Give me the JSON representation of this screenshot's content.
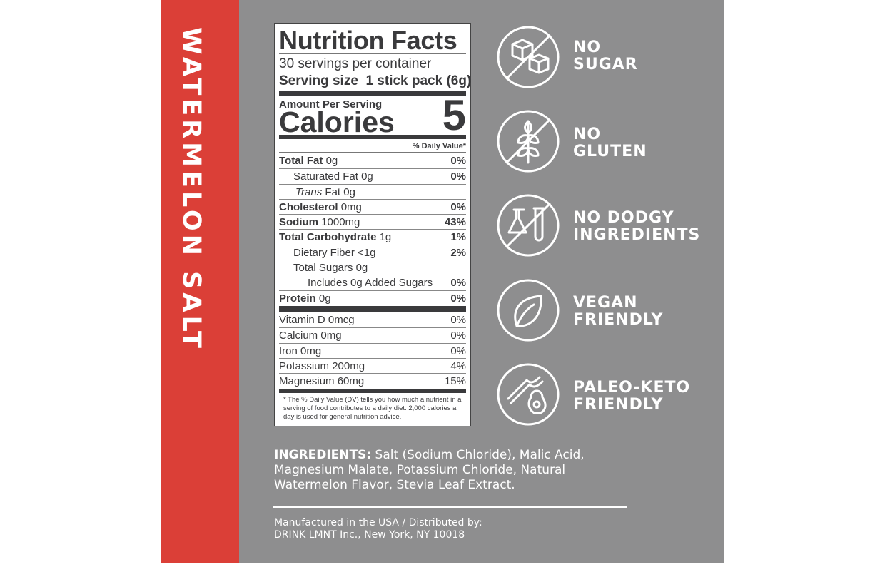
{
  "product_name": "WATERMELON SALT",
  "nutrition": {
    "title": "Nutrition Facts",
    "servings": "30 servings per container",
    "serving_size_label": "Serving size",
    "serving_size_value": "1 stick pack (6g)",
    "amount_per_serving": "Amount Per Serving",
    "calories_label": "Calories",
    "calories_value": "5",
    "dv_header": "% Daily Value*",
    "rows": [
      {
        "name": "Total Fat",
        "amount": "0g",
        "dv": "0%"
      },
      {
        "name": "Saturated Fat",
        "amount": "0g",
        "dv": "0%"
      },
      {
        "prefix": "Trans",
        "name": "Fat",
        "amount": "0g"
      },
      {
        "name": "Cholesterol",
        "amount": "0mg",
        "dv": "0%"
      },
      {
        "name": "Sodium",
        "amount": "1000mg",
        "dv": "43%"
      },
      {
        "name": "Total Carbohydrate",
        "amount": "1g",
        "dv": "1%"
      },
      {
        "name": "Dietary Fiber",
        "amount": "<1g",
        "dv": "2%"
      },
      {
        "name": "Total Sugars",
        "amount": "0g"
      },
      {
        "name": "Includes 0g Added Sugars",
        "dv": "0%"
      },
      {
        "name": "Protein",
        "amount": "0g",
        "dv": "0%"
      }
    ],
    "vitamins": [
      {
        "name": "Vitamin D",
        "amount": "0mcg",
        "dv": "0%"
      },
      {
        "name": "Calcium",
        "amount": "0mg",
        "dv": "0%"
      },
      {
        "name": "Iron",
        "amount": "0mg",
        "dv": "0%"
      },
      {
        "name": "Potassium",
        "amount": "200mg",
        "dv": "4%"
      },
      {
        "name": "Magnesium",
        "amount": "60mg",
        "dv": "15%"
      }
    ],
    "footnote": "* The % Daily Value (DV) tells you how much a nutrient in a serving of food contributes to a daily diet. 2,000 calories a day is used for general nutrition advice."
  },
  "claims": [
    {
      "line1": "NO",
      "line2": "SUGAR"
    },
    {
      "line1": "NO",
      "line2": "GLUTEN"
    },
    {
      "line1": "NO DODGY",
      "line2": "INGREDIENTS"
    },
    {
      "line1": "VEGAN",
      "line2": "FRIENDLY"
    },
    {
      "line1": "PALEO-KETO",
      "line2": "FRIENDLY"
    }
  ],
  "ingredients": {
    "label": "INGREDIENTS:",
    "text": "Salt (Sodium Chloride), Malic Acid, Magnesium Malate, Potassium Chloride, Natural Watermelon Flavor, Stevia Leaf Extract."
  },
  "manufacturer": [
    "Manufactured in the USA / Distributed by:",
    "DRINK LMNT Inc., New York, NY 10018"
  ]
}
